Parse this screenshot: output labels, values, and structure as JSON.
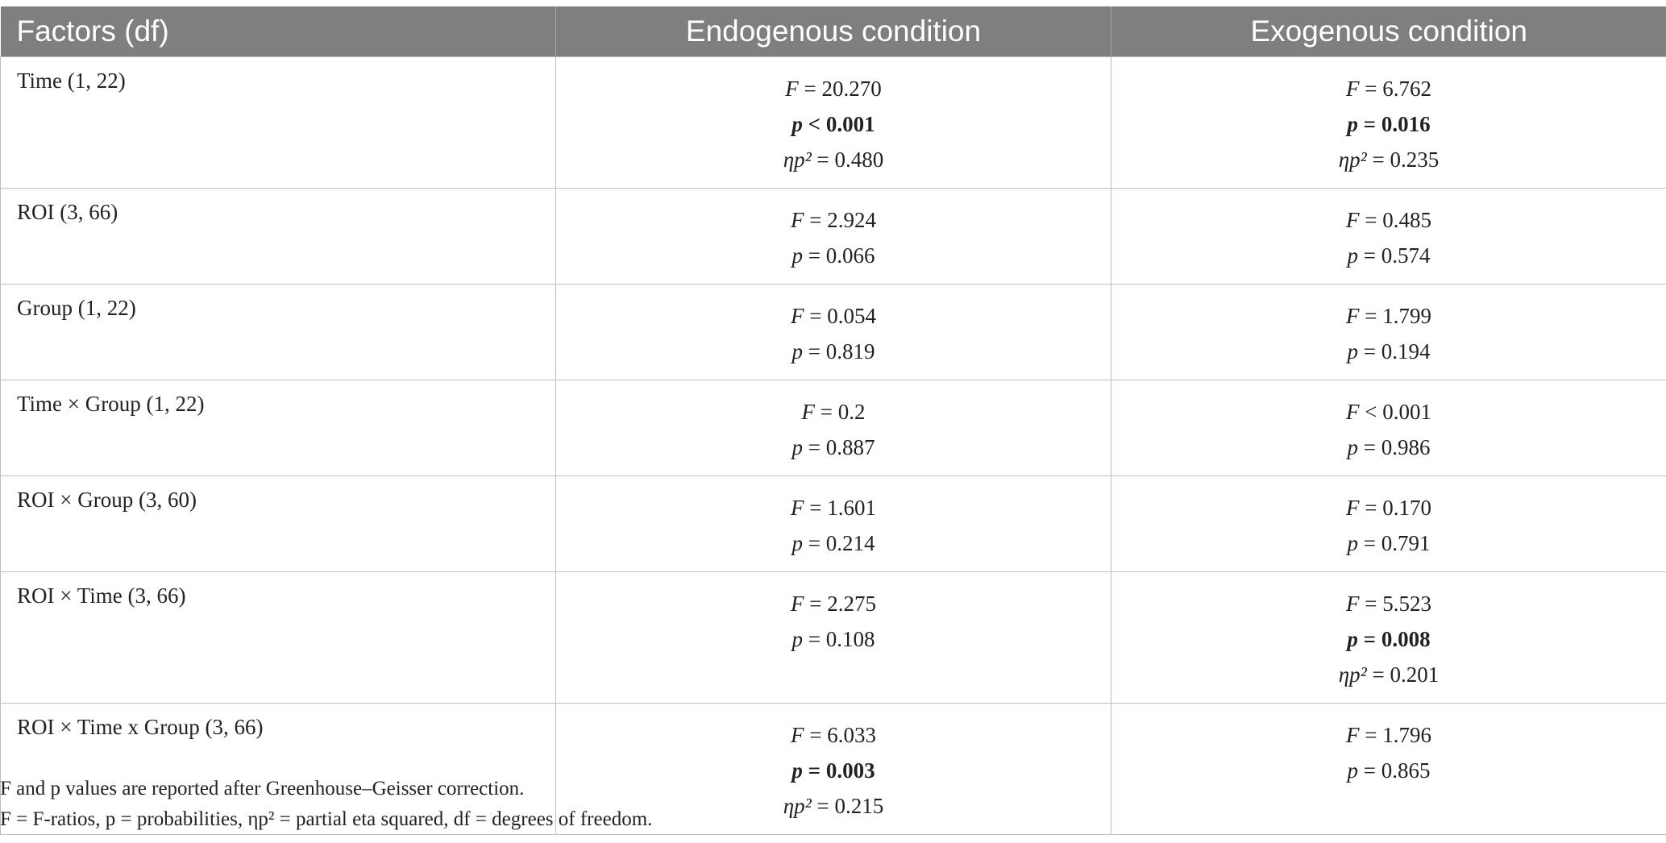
{
  "table": {
    "headers": [
      "Factors (df)",
      "Endogenous condition",
      "Exogenous condition"
    ],
    "rows": [
      {
        "factor": "Time (1, 22)",
        "endo": [
          {
            "sym": "F",
            "op": " = ",
            "val": "20.270",
            "bold": false
          },
          {
            "sym": "p",
            "op": " < ",
            "val": "0.001",
            "bold": true
          },
          {
            "sym": "ηp²",
            "op": " = ",
            "val": "0.480",
            "bold": false
          }
        ],
        "exo": [
          {
            "sym": "F",
            "op": " = ",
            "val": "6.762",
            "bold": false
          },
          {
            "sym": "p",
            "op": " = ",
            "val": "0.016",
            "bold": true
          },
          {
            "sym": "ηp²",
            "op": " = ",
            "val": "0.235",
            "bold": false
          }
        ]
      },
      {
        "factor": "ROI (3, 66)",
        "endo": [
          {
            "sym": "F",
            "op": " = ",
            "val": "2.924",
            "bold": false
          },
          {
            "sym": "p",
            "op": " = ",
            "val": "0.066",
            "bold": false
          }
        ],
        "exo": [
          {
            "sym": "F",
            "op": " = ",
            "val": "0.485",
            "bold": false
          },
          {
            "sym": "p",
            "op": " = ",
            "val": "0.574",
            "bold": false
          }
        ]
      },
      {
        "factor": "Group (1, 22)",
        "endo": [
          {
            "sym": "F",
            "op": " = ",
            "val": "0.054",
            "bold": false
          },
          {
            "sym": "p",
            "op": " = ",
            "val": "0.819",
            "bold": false
          }
        ],
        "exo": [
          {
            "sym": "F",
            "op": " = ",
            "val": "1.799",
            "bold": false
          },
          {
            "sym": "p",
            "op": " = ",
            "val": "0.194",
            "bold": false
          }
        ]
      },
      {
        "factor": "Time × Group (1, 22)",
        "endo": [
          {
            "sym": "F",
            "op": " = ",
            "val": "0.2",
            "bold": false
          },
          {
            "sym": "p",
            "op": " = ",
            "val": "0.887",
            "bold": false
          }
        ],
        "exo": [
          {
            "sym": "F",
            "op": " < ",
            "val": "0.001",
            "bold": false
          },
          {
            "sym": "p",
            "op": " = ",
            "val": "0.986",
            "bold": false
          }
        ]
      },
      {
        "factor": "ROI × Group (3, 60)",
        "endo": [
          {
            "sym": "F",
            "op": " = ",
            "val": "1.601",
            "bold": false
          },
          {
            "sym": "p",
            "op": " = ",
            "val": "0.214",
            "bold": false
          }
        ],
        "exo": [
          {
            "sym": "F",
            "op": " = ",
            "val": "0.170",
            "bold": false
          },
          {
            "sym": "p",
            "op": " = ",
            "val": "0.791",
            "bold": false
          }
        ]
      },
      {
        "factor": "ROI × Time (3, 66)",
        "endo": [
          {
            "sym": "F",
            "op": " = ",
            "val": "2.275",
            "bold": false
          },
          {
            "sym": "p",
            "op": " = ",
            "val": "0.108",
            "bold": false
          }
        ],
        "exo": [
          {
            "sym": "F",
            "op": " = ",
            "val": "5.523",
            "bold": false
          },
          {
            "sym": "p",
            "op": " = ",
            "val": "0.008",
            "bold": true
          },
          {
            "sym": "ηp²",
            "op": " = ",
            "val": "0.201",
            "bold": false
          }
        ]
      },
      {
        "factor": "ROI × Time x Group (3, 66)",
        "endo": [
          {
            "sym": "F",
            "op": " = ",
            "val": "6.033",
            "bold": false
          },
          {
            "sym": "p",
            "op": " = ",
            "val": "0.003",
            "bold": true
          },
          {
            "sym": "ηp²",
            "op": " = ",
            "val": "0.215",
            "bold": false
          }
        ],
        "exo": [
          {
            "sym": "F",
            "op": " = ",
            "val": "1.796",
            "bold": false
          },
          {
            "sym": "p",
            "op": " = ",
            "val": "0.865",
            "bold": false
          }
        ]
      }
    ]
  },
  "notes": [
    "F and p values are reported after Greenhouse–Geisser correction.",
    "F = F-ratios, p = probabilities, ηp² = partial eta squared, df = degrees of freedom."
  ]
}
